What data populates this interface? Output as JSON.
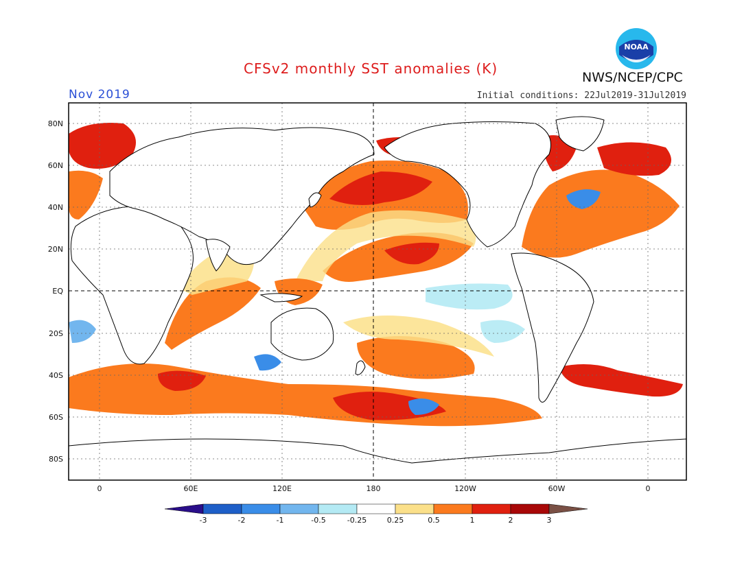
{
  "title": "CFSv2 monthly SST anomalies (K)",
  "month_label": "Nov 2019",
  "initial_conditions": "Initial conditions: 22Jul2019-31Jul2019",
  "agency": "NWS/NCEP/CPC",
  "logo_text": "NOAA",
  "lat_ticks": [
    "80N",
    "60N",
    "40N",
    "20N",
    "EQ",
    "20S",
    "40S",
    "60S",
    "80S"
  ],
  "lon_ticks": [
    "0",
    "60E",
    "120E",
    "180",
    "120W",
    "60W",
    "0"
  ],
  "colorbar": {
    "labels": [
      "-3",
      "-2",
      "-1",
      "-0.5",
      "-0.25",
      "0.25",
      "0.5",
      "1",
      "2",
      "3"
    ],
    "colors": [
      "#2a0e8a",
      "#1e5fc8",
      "#3a8de8",
      "#72b6ee",
      "#b4eaf4",
      "#ffffff",
      "#fbe08a",
      "#fb7a1e",
      "#e0200f",
      "#a80808",
      "#7a5045"
    ]
  },
  "colors": {
    "title": "#dd1c1c",
    "month": "#2a4fd6",
    "land": "#ffffff",
    "coast": "#000000"
  }
}
